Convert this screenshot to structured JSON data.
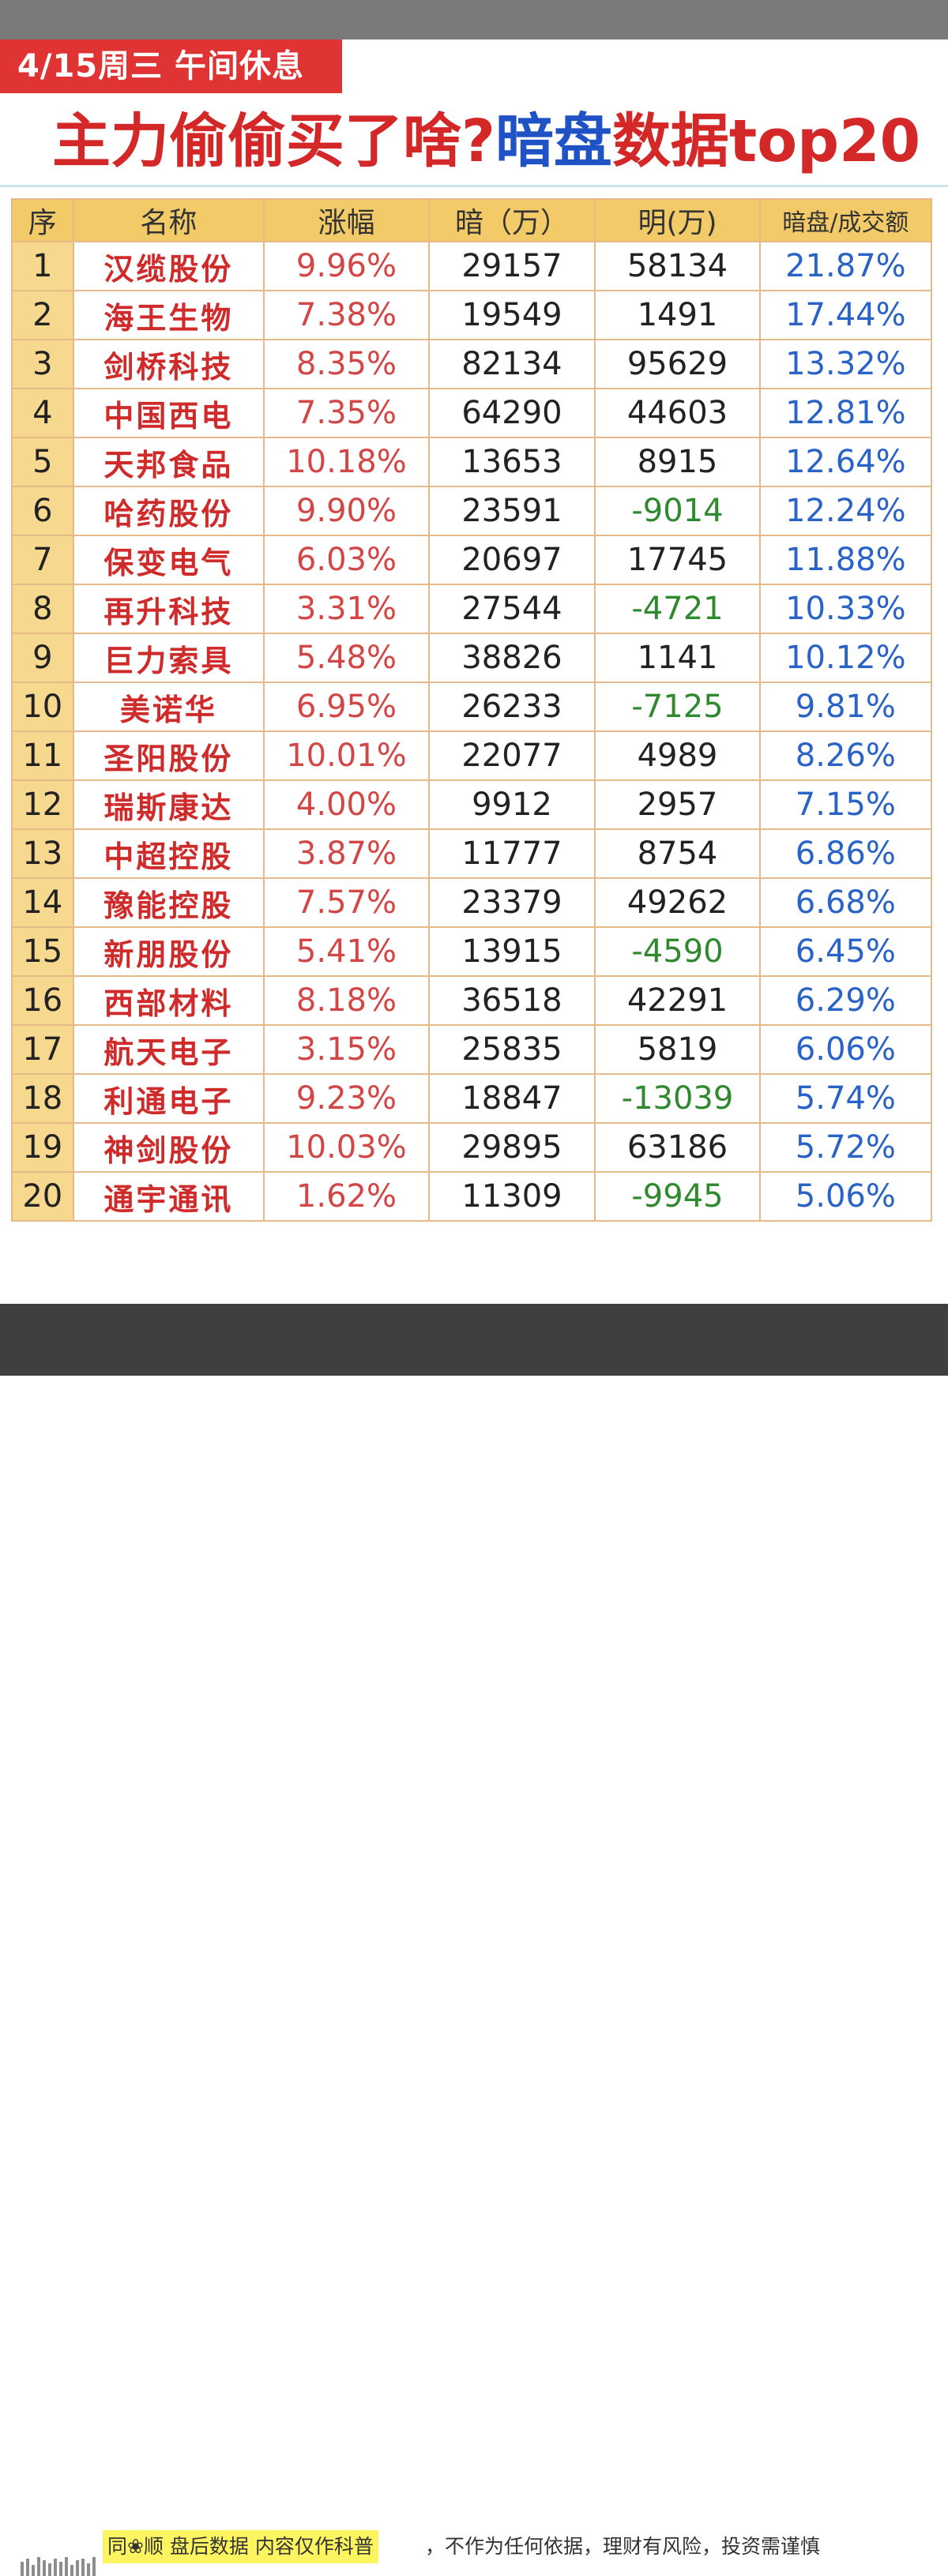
{
  "date_tag": "4/15周三 午间休息",
  "headline": {
    "part1": "主力偷偷买了啥?",
    "part2": "暗盘",
    "part3": "数据top20"
  },
  "table": {
    "headers": [
      "序",
      "名称",
      "涨幅",
      "暗（万）",
      "明(万)",
      "暗盘/成交额"
    ],
    "rows": [
      {
        "idx": "1",
        "name": "汉缆股份",
        "chg": "9.96%",
        "dark": "29157",
        "lit": "58134",
        "ratio": "21.87%"
      },
      {
        "idx": "2",
        "name": "海王生物",
        "chg": "7.38%",
        "dark": "19549",
        "lit": "1491",
        "ratio": "17.44%"
      },
      {
        "idx": "3",
        "name": "剑桥科技",
        "chg": "8.35%",
        "dark": "82134",
        "lit": "95629",
        "ratio": "13.32%"
      },
      {
        "idx": "4",
        "name": "中国西电",
        "chg": "7.35%",
        "dark": "64290",
        "lit": "44603",
        "ratio": "12.81%"
      },
      {
        "idx": "5",
        "name": "天邦食品",
        "chg": "10.18%",
        "dark": "13653",
        "lit": "8915",
        "ratio": "12.64%"
      },
      {
        "idx": "6",
        "name": "哈药股份",
        "chg": "9.90%",
        "dark": "23591",
        "lit": "-9014",
        "ratio": "12.24%"
      },
      {
        "idx": "7",
        "name": "保变电气",
        "chg": "6.03%",
        "dark": "20697",
        "lit": "17745",
        "ratio": "11.88%"
      },
      {
        "idx": "8",
        "name": "再升科技",
        "chg": "3.31%",
        "dark": "27544",
        "lit": "-4721",
        "ratio": "10.33%"
      },
      {
        "idx": "9",
        "name": "巨力索具",
        "chg": "5.48%",
        "dark": "38826",
        "lit": "1141",
        "ratio": "10.12%"
      },
      {
        "idx": "10",
        "name": "美诺华",
        "chg": "6.95%",
        "dark": "26233",
        "lit": "-7125",
        "ratio": "9.81%"
      },
      {
        "idx": "11",
        "name": "圣阳股份",
        "chg": "10.01%",
        "dark": "22077",
        "lit": "4989",
        "ratio": "8.26%"
      },
      {
        "idx": "12",
        "name": "瑞斯康达",
        "chg": "4.00%",
        "dark": "9912",
        "lit": "2957",
        "ratio": "7.15%"
      },
      {
        "idx": "13",
        "name": "中超控股",
        "chg": "3.87%",
        "dark": "11777",
        "lit": "8754",
        "ratio": "6.86%"
      },
      {
        "idx": "14",
        "name": "豫能控股",
        "chg": "7.57%",
        "dark": "23379",
        "lit": "49262",
        "ratio": "6.68%"
      },
      {
        "idx": "15",
        "name": "新朋股份",
        "chg": "5.41%",
        "dark": "13915",
        "lit": "-4590",
        "ratio": "6.45%"
      },
      {
        "idx": "16",
        "name": "西部材料",
        "chg": "8.18%",
        "dark": "36518",
        "lit": "42291",
        "ratio": "6.29%"
      },
      {
        "idx": "17",
        "name": "航天电子",
        "chg": "3.15%",
        "dark": "25835",
        "lit": "5819",
        "ratio": "6.06%"
      },
      {
        "idx": "18",
        "name": "利通电子",
        "chg": "9.23%",
        "dark": "18847",
        "lit": "-13039",
        "ratio": "5.74%"
      },
      {
        "idx": "19",
        "name": "神剑股份",
        "chg": "10.03%",
        "dark": "29895",
        "lit": "63186",
        "ratio": "5.72%"
      },
      {
        "idx": "20",
        "name": "通宇通讯",
        "chg": "1.62%",
        "dark": "11309",
        "lit": "-9945",
        "ratio": "5.06%"
      }
    ]
  },
  "disclaimer": {
    "highlight": "同❀顺 盘后数据 内容仅作科普",
    "rest": "，不作为任何依据，理财有风险，投资需谨慎"
  },
  "colors": {
    "red": "#d42727",
    "blue": "#1f52c4",
    "header_bg": "#f3ca68",
    "negative_green": "#2f8a2f",
    "ratio_blue": "#2a63c8"
  }
}
